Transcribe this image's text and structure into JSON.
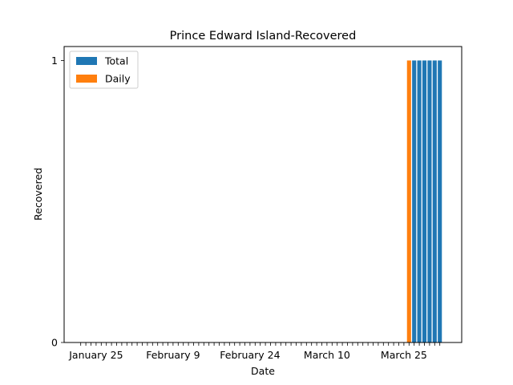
{
  "chart_data": {
    "type": "bar",
    "title": "Prince Edward Island-Recovered",
    "xlabel": "Date",
    "ylabel": "Recovered",
    "start_date": "2020-01-22",
    "end_date": "2020-04-01",
    "xtick_labels": [
      {
        "date": "2020-01-25",
        "label": "January 25"
      },
      {
        "date": "2020-02-09",
        "label": "February 9"
      },
      {
        "date": "2020-02-24",
        "label": "February 24"
      },
      {
        "date": "2020-03-10",
        "label": "March 10"
      },
      {
        "date": "2020-03-25",
        "label": "March 25"
      }
    ],
    "yticks": [
      0,
      1
    ],
    "ylim": [
      0,
      1
    ],
    "legend_position": "top-left",
    "grid": false,
    "series": [
      {
        "name": "Total",
        "color": "#1f77b4",
        "points": [
          {
            "date": "2020-03-27",
            "value": 1
          },
          {
            "date": "2020-03-28",
            "value": 1
          },
          {
            "date": "2020-03-29",
            "value": 1
          },
          {
            "date": "2020-03-30",
            "value": 1
          },
          {
            "date": "2020-03-31",
            "value": 1
          },
          {
            "date": "2020-04-01",
            "value": 1
          }
        ]
      },
      {
        "name": "Daily",
        "color": "#ff7f0e",
        "points": [
          {
            "date": "2020-03-26",
            "value": 1
          }
        ]
      }
    ]
  }
}
